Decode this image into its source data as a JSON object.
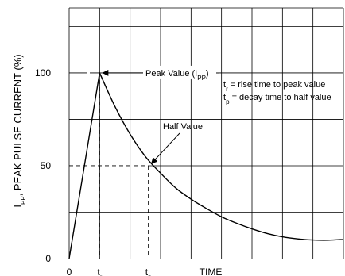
{
  "chart_data": {
    "type": "line",
    "ylabel_main": "I",
    "ylabel_sub": "PP",
    "ylabel_rest": ", PEAK PULSE CURRENT (%)",
    "xlabel": "TIME",
    "yticks": [
      "0",
      "50",
      "100"
    ],
    "xticks": [
      {
        "main": "0",
        "sub": ""
      },
      {
        "main": "t",
        "sub": "r"
      },
      {
        "main": "t",
        "sub": "p"
      }
    ],
    "ylim": [
      0,
      135
    ],
    "xlim": [
      0,
      9
    ],
    "grid": true,
    "series": [
      {
        "x": [
          0,
          1,
          1.5,
          2,
          2.5,
          3,
          3.5,
          4,
          4.5,
          5,
          5.5,
          6,
          6.5,
          7,
          7.5,
          8,
          8.5,
          9
        ],
        "y": [
          0,
          100,
          82,
          67,
          55,
          46,
          38,
          32,
          27,
          22.5,
          19,
          16,
          13.5,
          11.7,
          10.6,
          10,
          9.9,
          10.3
        ]
      }
    ],
    "markers": {
      "tr": 1,
      "tp": 2.6,
      "half": 50,
      "peak": 100
    },
    "annotations": {
      "peak_prefix": "Peak Value (I",
      "peak_sub": "PP",
      "peak_suffix": ")",
      "half": "Half Value",
      "legend1_main": "t",
      "legend1_sub": "r",
      "legend1_text": " = rise time to peak value",
      "legend2_main": "t",
      "legend2_sub": "p",
      "legend2_text": " = decay time to half value"
    }
  }
}
